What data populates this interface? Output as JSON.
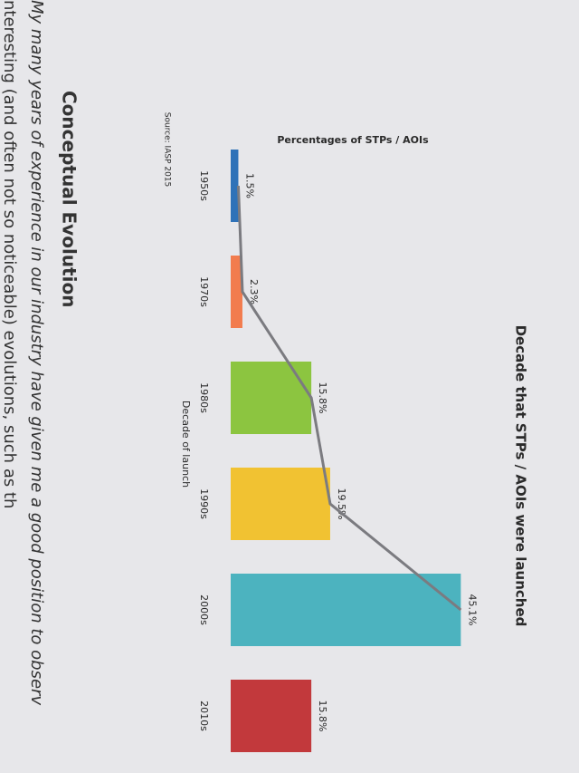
{
  "chart_data": {
    "type": "bar",
    "title": "Decade that STPs / AOIs were launched",
    "y_label": "Percentages of STPs / AOIs",
    "x_label": "Decade of launch",
    "source": "Source: IASP 2015",
    "categories": [
      "1950s",
      "1970s",
      "1980s",
      "1990s",
      "2000s",
      "2010s"
    ],
    "values": [
      1.5,
      2.3,
      15.8,
      19.5,
      45.1,
      15.8
    ],
    "value_labels": [
      "1.5%",
      "2.3%",
      "15.8%",
      "19.5%",
      "45.1%",
      "15.8%"
    ],
    "colors": [
      "#2f72b8",
      "#f27c4e",
      "#8cc540",
      "#f1c232",
      "#4cb3bf",
      "#c2393c"
    ],
    "line": {
      "values": [
        1.5,
        2.3,
        15.8,
        19.5,
        45.1,
        null
      ],
      "color": "#7b7b80"
    },
    "ylim": [
      0,
      50
    ]
  },
  "document": {
    "heading": "Conceptual Evolution",
    "lines": [
      "My many years of experience in our industry have given me a good position to observ",
      "nteresting (and often not so noticeable) evolutions, such as th"
    ]
  }
}
